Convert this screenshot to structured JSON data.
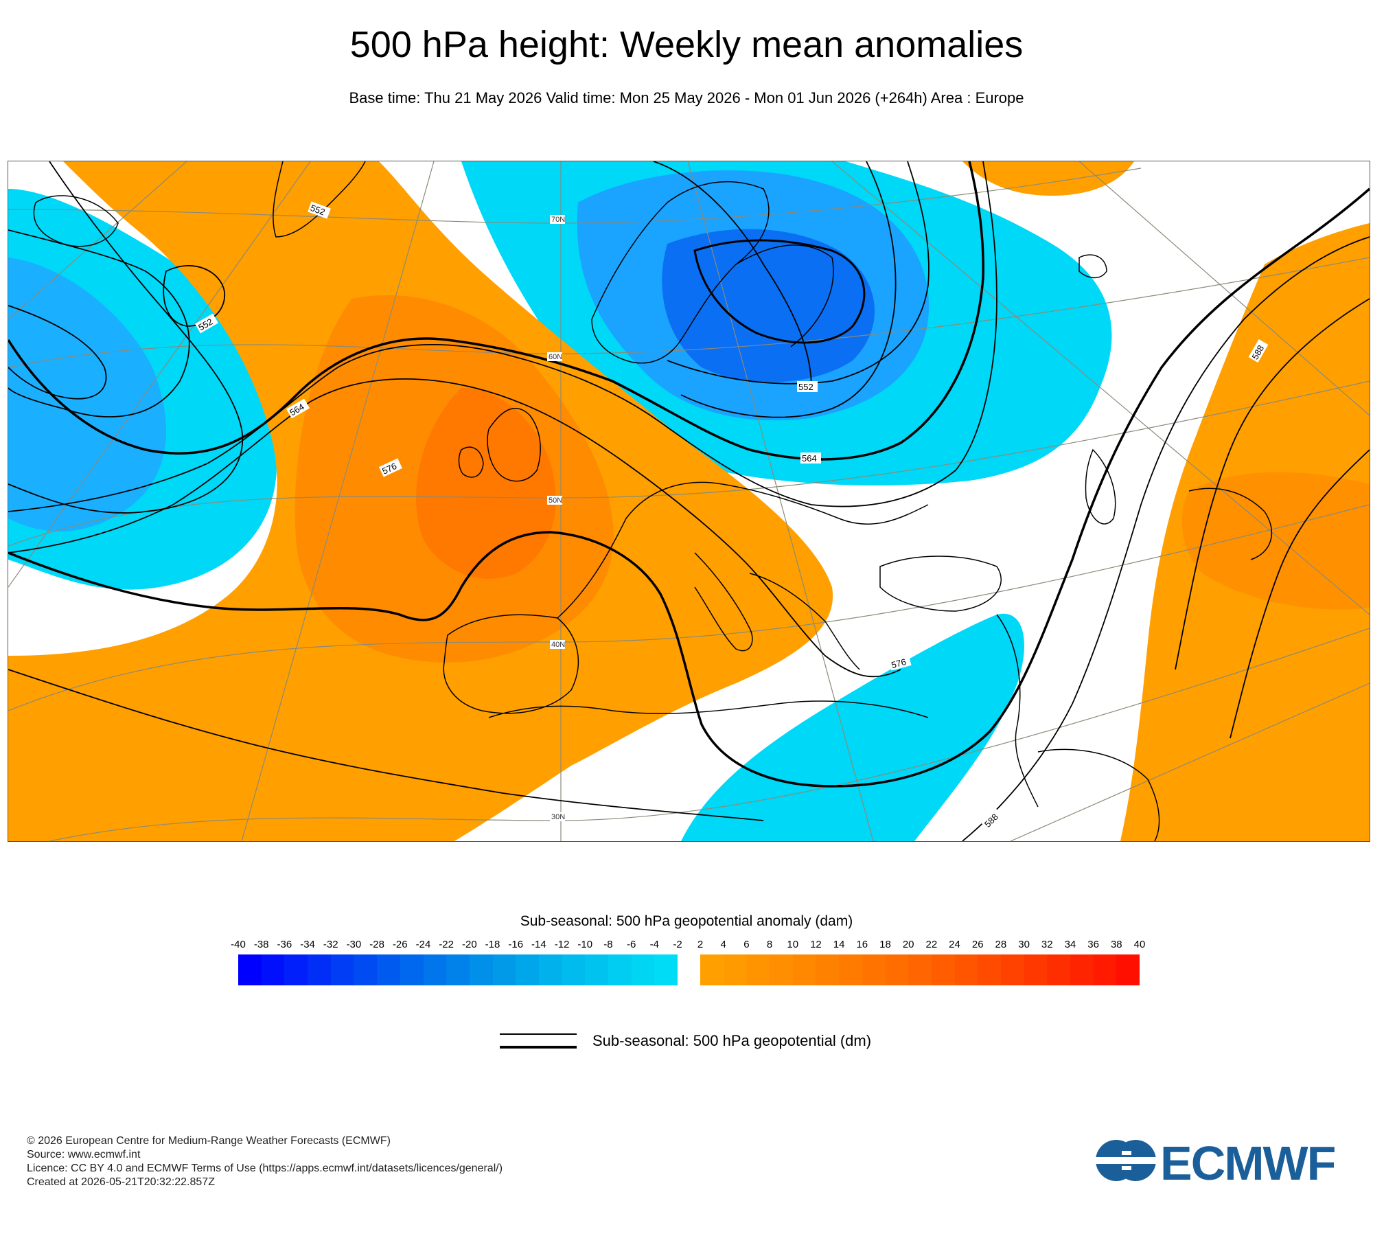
{
  "title": "500 hPa height: Weekly mean anomalies",
  "subtitle": "Base time: Thu 21 May 2026 Valid time: Mon 25 May 2026 - Mon 01 Jun 2026 (+264h) Area : Europe",
  "map": {
    "latitude_labels": [
      "70N",
      "60N",
      "50N",
      "40N",
      "30N"
    ],
    "contour_labels": [
      "552",
      "552",
      "552",
      "564",
      "564",
      "576",
      "576",
      "588",
      "588"
    ],
    "colors": {
      "strong_negative": "#0a5fef",
      "negative": "#00c8ff",
      "negative_mid": "#1aa3ff",
      "positive": "#ff9f00",
      "positive_mid": "#ff8a00",
      "strong_positive": "#ff7400",
      "coast": "#000000",
      "graticule": "#8a8a7a"
    }
  },
  "legend": {
    "title": "Sub-seasonal: 500 hPa geopotential anomaly (dam)",
    "negative_ticks": [
      "-40",
      "-38",
      "-36",
      "-34",
      "-32",
      "-30",
      "-28",
      "-26",
      "-24",
      "-22",
      "-20",
      "-18",
      "-16",
      "-14",
      "-12",
      "-10",
      "-8",
      "-6",
      "-4",
      "-2"
    ],
    "positive_ticks": [
      "2",
      "4",
      "6",
      "8",
      "10",
      "12",
      "14",
      "16",
      "18",
      "20",
      "22",
      "24",
      "26",
      "28",
      "30",
      "32",
      "34",
      "36",
      "38",
      "40"
    ],
    "negative_colors": [
      "#0000ff",
      "#0010fc",
      "#001ffa",
      "#002ef7",
      "#003df5",
      "#004cf2",
      "#005af0",
      "#0068ee",
      "#0075ec",
      "#0082ea",
      "#008fe9",
      "#009ae9",
      "#00a6ea",
      "#00b1eb",
      "#00bbed",
      "#00c4ef",
      "#00cdf1",
      "#00d5f3",
      "#00dcf5"
    ],
    "positive_colors": [
      "#ffa000",
      "#ff9a00",
      "#ff9400",
      "#ff8e00",
      "#ff8800",
      "#ff8100",
      "#ff7b00",
      "#ff7400",
      "#ff6d00",
      "#ff6500",
      "#ff5d00",
      "#ff5400",
      "#ff4b00",
      "#ff4200",
      "#ff3800",
      "#ff2e00",
      "#ff2400",
      "#ff1a00",
      "#ff0f00"
    ],
    "contour_legend_label": "Sub-seasonal: 500 hPa geopotential (dm)"
  },
  "footer": {
    "line1": "© 2026 European Centre for Medium-Range Weather Forecasts (ECMWF)",
    "line2": "Source: www.ecmwf.int",
    "line3": "Licence: CC BY 4.0 and ECMWF Terms of Use (https://apps.ecmwf.int/datasets/licences/general/)",
    "line4": "Created at 2026-05-21T20:32:22.857Z"
  },
  "logo": {
    "text": "ECMWF",
    "color": "#1b5f9a"
  }
}
